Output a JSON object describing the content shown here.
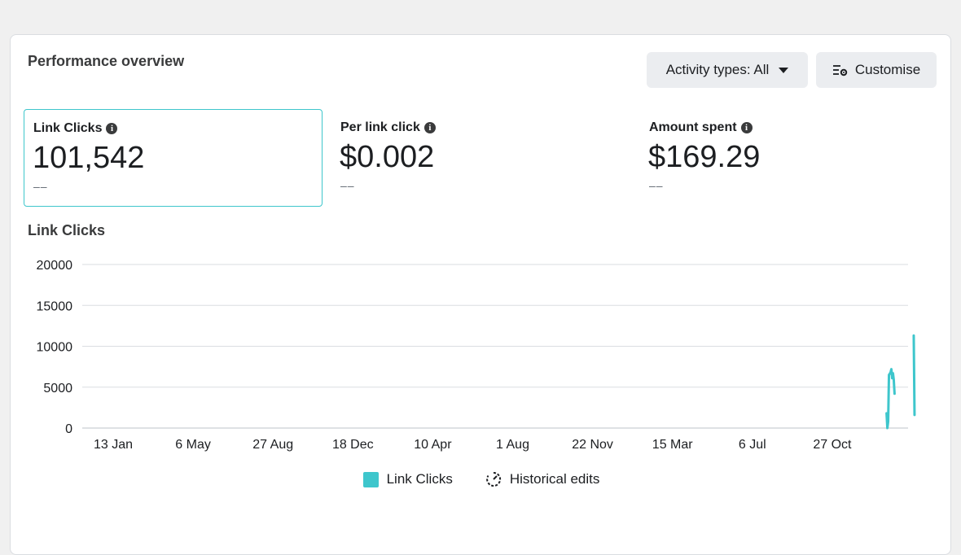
{
  "card": {
    "title": "Performance overview",
    "activity_button": "Activity types: All",
    "customise_button": "Customise"
  },
  "metrics": [
    {
      "label": "Link Clicks",
      "value": "101,542",
      "delta": "––"
    },
    {
      "label": "Per link click",
      "value": "$0.002",
      "delta": "––"
    },
    {
      "label": "Amount spent",
      "value": "$169.29",
      "delta": "––"
    }
  ],
  "chart_title": "Link Clicks",
  "legend": {
    "series": "Link Clicks",
    "historical": "Historical edits"
  },
  "chart_data": {
    "type": "line",
    "ylim": [
      0,
      20000
    ],
    "yticks": [
      "20000",
      "15000",
      "10000",
      "5000",
      "0"
    ],
    "xticks": [
      "13 Jan",
      "6 May",
      "27 Aug",
      "18 Dec",
      "10 Apr",
      "1 Aug",
      "22 Nov",
      "15 Mar",
      "6 Jul",
      "27 Oct"
    ],
    "color": "#3ec6cc",
    "series": [
      {
        "name": "Link Clicks",
        "segments": [
          [
            [
              9.68,
              1800
            ],
            [
              9.69,
              0
            ],
            [
              9.7,
              800
            ],
            [
              9.71,
              6500
            ],
            [
              9.73,
              6800
            ],
            [
              9.74,
              7200
            ],
            [
              9.75,
              6100
            ],
            [
              9.76,
              6700
            ],
            [
              9.77,
              5900
            ],
            [
              9.78,
              4200
            ]
          ],
          [
            [
              10.02,
              11300
            ],
            [
              10.03,
              1600
            ]
          ]
        ]
      }
    ]
  }
}
